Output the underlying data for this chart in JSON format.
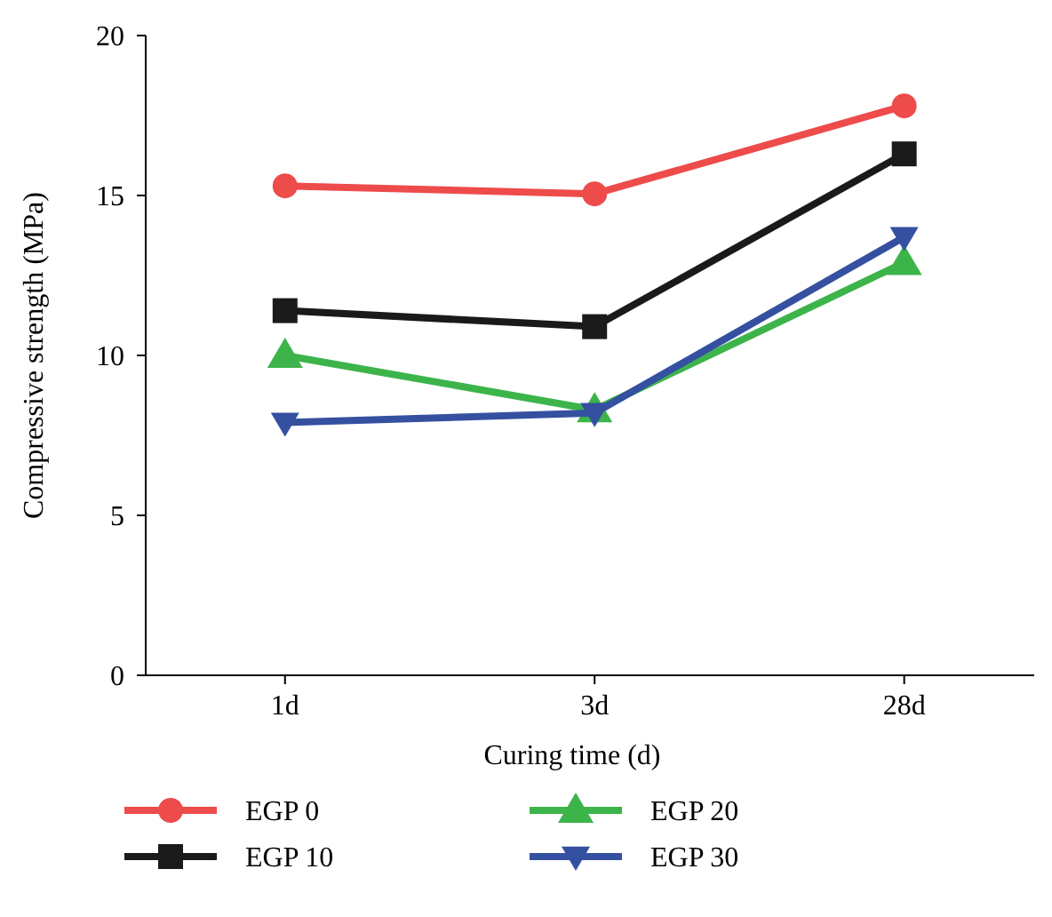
{
  "chart_data": {
    "type": "line",
    "xlabel": "Curing time (d)",
    "ylabel": "Compressive strength (MPa)",
    "categories": [
      "1d",
      "3d",
      "28d"
    ],
    "ylim": [
      0,
      20
    ],
    "yticks": [
      0,
      5,
      10,
      15,
      20
    ],
    "grid": false,
    "legend": "bottom",
    "line_style": "solid",
    "series": [
      {
        "name": "EGP 0",
        "color": "#ee4b4b",
        "marker": "circle",
        "values": [
          15.3,
          15.05,
          17.8
        ]
      },
      {
        "name": "EGP 10",
        "color": "#1a1a1a",
        "marker": "square",
        "values": [
          11.4,
          10.9,
          16.3
        ]
      },
      {
        "name": "EGP 20",
        "color": "#3cb44a",
        "marker": "triangle",
        "values": [
          10.0,
          8.3,
          12.9
        ]
      },
      {
        "name": "EGP 30",
        "color": "#3550a0",
        "marker": "triangle-down",
        "values": [
          7.9,
          8.2,
          13.7
        ]
      }
    ]
  }
}
